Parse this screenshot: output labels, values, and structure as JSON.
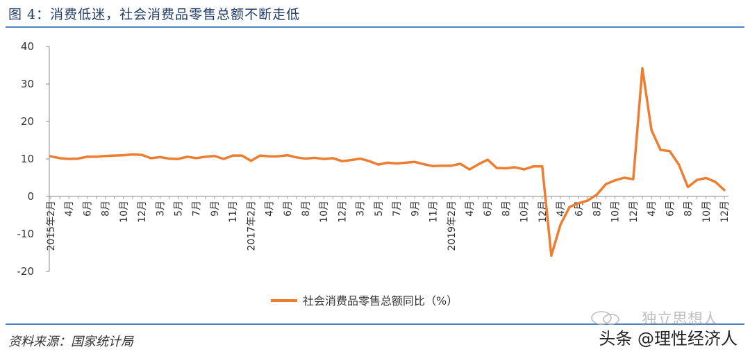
{
  "figure_title": "图 4：消费低迷，社会消费品零售总额不断走低",
  "source": "资料来源：国家统计局",
  "watermark": {
    "line1": "独立思想人",
    "line2": "头条 @理性经济人"
  },
  "colors": {
    "line": "#ed7d31",
    "rule": "#4a86c5",
    "axis": "#888888"
  },
  "chart_data": {
    "type": "line",
    "title": "",
    "xlabel": "",
    "ylabel": "",
    "ylim": [
      -20,
      40
    ],
    "yticks": [
      -20,
      -10,
      0,
      10,
      20,
      30,
      40
    ],
    "grid": false,
    "legend_position": "bottom",
    "x_tick_labels": [
      "2015年2月",
      "4月",
      "6月",
      "8月",
      "10月",
      "12月",
      "3月",
      "5月",
      "7月",
      "9月",
      "11月",
      "2017年2月",
      "4月",
      "6月",
      "8月",
      "10月",
      "12月",
      "3月",
      "5月",
      "7月",
      "9月",
      "11月",
      "2019年2月",
      "4月",
      "6月",
      "8月",
      "10月",
      "12月",
      "4月",
      "6月",
      "8月",
      "10月",
      "12月",
      "4月",
      "6月",
      "8月",
      "10月",
      "12月"
    ],
    "series": [
      {
        "name": "社会消费品零售总额同比（%）",
        "values": [
          10.7,
          10.2,
          10.0,
          10.1,
          10.6,
          10.6,
          10.8,
          10.9,
          11.0,
          11.2,
          11.1,
          10.2,
          10.5,
          10.1,
          10.0,
          10.6,
          10.2,
          10.6,
          10.8,
          10.0,
          10.9,
          10.9,
          9.5,
          10.9,
          10.7,
          10.7,
          11.0,
          10.4,
          10.1,
          10.3,
          10.0,
          10.2,
          9.4,
          9.7,
          10.1,
          9.4,
          8.5,
          9.0,
          8.8,
          9.0,
          9.2,
          8.6,
          8.1,
          8.2,
          8.2,
          8.7,
          7.2,
          8.6,
          9.8,
          7.6,
          7.5,
          7.8,
          7.2,
          8.0,
          8.0,
          -15.8,
          -7.5,
          -2.8,
          -1.8,
          -1.1,
          0.5,
          3.3,
          4.3,
          5.0,
          4.6,
          34.2,
          17.7,
          12.4,
          12.1,
          8.5,
          2.5,
          4.4,
          4.9,
          3.9,
          1.7
        ]
      }
    ]
  }
}
